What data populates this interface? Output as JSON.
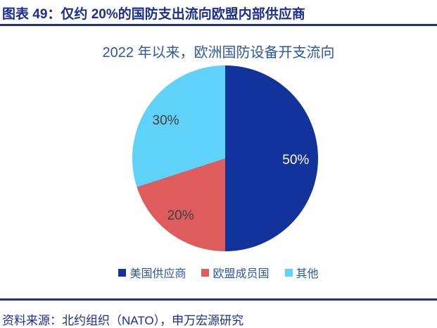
{
  "header": {
    "title": "图表 49：仅约 20%的国防支出流向欧盟内部供应商"
  },
  "chart_data": {
    "type": "pie",
    "title": "2022 年以来，欧洲国防设备开支流向",
    "start_angle_deg": 0,
    "direction": "clockwise",
    "legend_position": "bottom",
    "slices": [
      {
        "label": "美国供应商",
        "value": 50,
        "display": "50%",
        "color": "#12339B",
        "label_color": "#FFFFFF"
      },
      {
        "label": "欧盟成员国",
        "value": 20,
        "display": "20%",
        "color": "#DF5C5C",
        "label_color": "#404040"
      },
      {
        "label": "其他",
        "value": 30,
        "display": "30%",
        "color": "#5FD2F9",
        "label_color": "#404040"
      }
    ]
  },
  "footer": {
    "source": "资料来源：北约组织（NATO），申万宏源研究"
  },
  "colors": {
    "accent_navy": "#1A2E93",
    "title_blue": "#2B57A7",
    "background": "#FFFFFF"
  }
}
